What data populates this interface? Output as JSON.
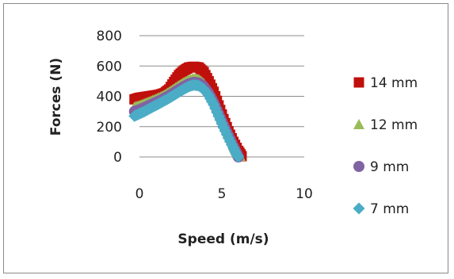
{
  "chart_data": {
    "type": "scatter",
    "xlabel": "Speed (m/s)",
    "ylabel": "Forces (N)",
    "xlim": [
      0,
      10
    ],
    "ylim": [
      0,
      800
    ],
    "x_ticks": [
      "0",
      "5",
      "10"
    ],
    "y_ticks": [
      "0",
      "200",
      "400",
      "600",
      "800"
    ],
    "grid": "horizontal",
    "legend": "right",
    "series": [
      {
        "name": "14 mm",
        "color": "#c0100c",
        "marker": "square",
        "points": [
          [
            -0.3,
            380
          ],
          [
            0,
            390
          ],
          [
            0.3,
            395
          ],
          [
            0.6,
            400
          ],
          [
            0.9,
            405
          ],
          [
            1.2,
            410
          ],
          [
            1.5,
            420
          ],
          [
            1.8,
            445
          ],
          [
            2.1,
            495
          ],
          [
            2.4,
            540
          ],
          [
            2.7,
            570
          ],
          [
            3.0,
            590
          ],
          [
            3.3,
            595
          ],
          [
            3.6,
            590
          ],
          [
            3.9,
            560
          ],
          [
            4.2,
            500
          ],
          [
            4.5,
            430
          ],
          [
            4.8,
            340
          ],
          [
            5.1,
            250
          ],
          [
            5.4,
            170
          ],
          [
            5.7,
            100
          ],
          [
            6.0,
            40
          ],
          [
            6.2,
            5
          ]
        ]
      },
      {
        "name": "12 mm",
        "color": "#9bbb59",
        "marker": "triangle",
        "points": [
          [
            -0.3,
            330
          ],
          [
            0,
            340
          ],
          [
            0.3,
            352
          ],
          [
            0.6,
            365
          ],
          [
            0.9,
            378
          ],
          [
            1.2,
            392
          ],
          [
            1.5,
            408
          ],
          [
            1.8,
            428
          ],
          [
            2.1,
            450
          ],
          [
            2.4,
            472
          ],
          [
            2.7,
            492
          ],
          [
            3.0,
            508
          ],
          [
            3.3,
            518
          ],
          [
            3.6,
            512
          ],
          [
            3.9,
            485
          ],
          [
            4.2,
            440
          ],
          [
            4.5,
            380
          ],
          [
            4.8,
            300
          ],
          [
            5.1,
            220
          ],
          [
            5.4,
            150
          ],
          [
            5.7,
            80
          ],
          [
            5.9,
            30
          ],
          [
            6.1,
            5
          ]
        ]
      },
      {
        "name": "9 mm",
        "color": "#8064a2",
        "marker": "circle",
        "points": [
          [
            -0.3,
            300
          ],
          [
            0,
            312
          ],
          [
            0.3,
            325
          ],
          [
            0.6,
            340
          ],
          [
            0.9,
            355
          ],
          [
            1.2,
            370
          ],
          [
            1.5,
            386
          ],
          [
            1.8,
            404
          ],
          [
            2.1,
            424
          ],
          [
            2.4,
            445
          ],
          [
            2.7,
            465
          ],
          [
            3.0,
            482
          ],
          [
            3.3,
            492
          ],
          [
            3.6,
            488
          ],
          [
            3.9,
            465
          ],
          [
            4.2,
            420
          ],
          [
            4.5,
            360
          ],
          [
            4.8,
            285
          ],
          [
            5.1,
            210
          ],
          [
            5.4,
            140
          ],
          [
            5.7,
            70
          ],
          [
            5.9,
            25
          ],
          [
            6.0,
            0
          ]
        ]
      },
      {
        "name": "7 mm",
        "color": "#4bacc6",
        "marker": "diamond",
        "points": [
          [
            -0.3,
            270
          ],
          [
            0,
            285
          ],
          [
            0.3,
            300
          ],
          [
            0.6,
            318
          ],
          [
            0.9,
            335
          ],
          [
            1.2,
            352
          ],
          [
            1.5,
            370
          ],
          [
            1.8,
            388
          ],
          [
            2.1,
            408
          ],
          [
            2.4,
            428
          ],
          [
            2.7,
            448
          ],
          [
            3.0,
            465
          ],
          [
            3.3,
            475
          ],
          [
            3.6,
            470
          ],
          [
            3.9,
            448
          ],
          [
            4.2,
            405
          ],
          [
            4.5,
            345
          ],
          [
            4.8,
            270
          ],
          [
            5.1,
            195
          ],
          [
            5.4,
            125
          ],
          [
            5.7,
            60
          ],
          [
            5.9,
            15
          ],
          [
            6.0,
            0
          ]
        ]
      }
    ]
  }
}
